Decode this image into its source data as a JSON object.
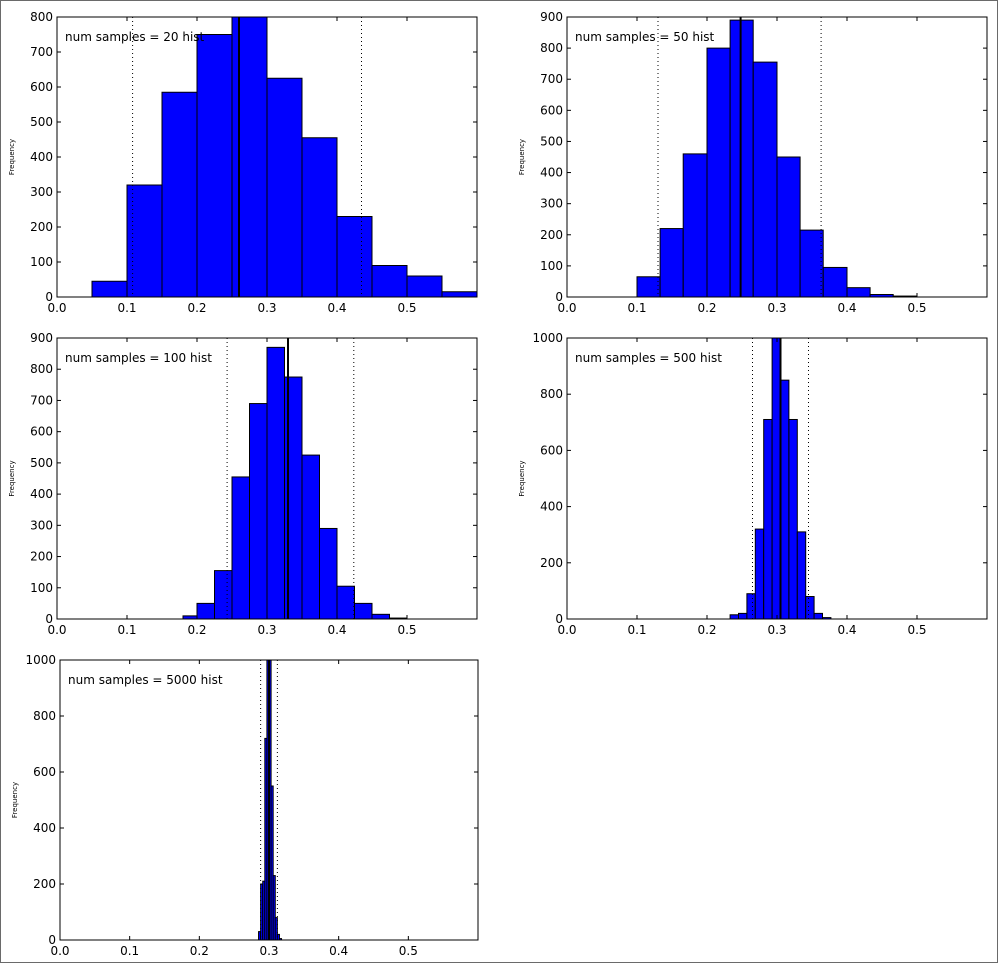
{
  "chart_data": [
    {
      "type": "bar",
      "annotation": "num samples = 20 hist",
      "ylabel": "Frequency",
      "xlim": [
        0.0,
        0.6
      ],
      "ylim": [
        0,
        800
      ],
      "xticks": [
        0.0,
        0.1,
        0.2,
        0.3,
        0.4,
        0.5
      ],
      "yticks": [
        0,
        100,
        200,
        300,
        400,
        500,
        600,
        700,
        800
      ],
      "bin_edges": [
        0.05,
        0.1,
        0.15,
        0.2,
        0.25,
        0.3,
        0.35,
        0.4,
        0.45,
        0.5,
        0.55,
        0.6
      ],
      "counts": [
        45,
        320,
        585,
        750,
        800,
        625,
        455,
        230,
        90,
        60,
        15
      ],
      "mean_line": 0.26,
      "ci_lines": [
        0.108,
        0.435
      ],
      "bar_color": "#0000ff"
    },
    {
      "type": "bar",
      "annotation": "num samples = 50 hist",
      "ylabel": "Frequency",
      "xlim": [
        0.0,
        0.6
      ],
      "ylim": [
        0,
        900
      ],
      "xticks": [
        0.0,
        0.1,
        0.2,
        0.3,
        0.4,
        0.5
      ],
      "yticks": [
        0,
        100,
        200,
        300,
        400,
        500,
        600,
        700,
        800,
        900
      ],
      "bin_edges": [
        0.1,
        0.133,
        0.166,
        0.2,
        0.233,
        0.266,
        0.3,
        0.333,
        0.366,
        0.4,
        0.433,
        0.466,
        0.5
      ],
      "counts": [
        65,
        220,
        460,
        800,
        890,
        755,
        450,
        215,
        95,
        30,
        8,
        3
      ],
      "mean_line": 0.248,
      "ci_lines": [
        0.13,
        0.363
      ],
      "bar_color": "#0000ff"
    },
    {
      "type": "bar",
      "annotation": "num samples = 100 hist",
      "ylabel": "Frequency",
      "xlim": [
        0.0,
        0.6
      ],
      "ylim": [
        0,
        900
      ],
      "xticks": [
        0.0,
        0.1,
        0.2,
        0.3,
        0.4,
        0.5
      ],
      "yticks": [
        0,
        100,
        200,
        300,
        400,
        500,
        600,
        700,
        800,
        900
      ],
      "bin_edges": [
        0.18,
        0.2,
        0.225,
        0.25,
        0.275,
        0.3,
        0.325,
        0.35,
        0.375,
        0.4,
        0.425,
        0.45,
        0.475,
        0.5
      ],
      "counts": [
        10,
        50,
        155,
        455,
        690,
        870,
        775,
        525,
        290,
        105,
        50,
        15,
        3
      ],
      "mean_line": 0.33,
      "ci_lines": [
        0.243,
        0.424
      ],
      "bar_color": "#0000ff"
    },
    {
      "type": "bar",
      "annotation": "num samples = 500 hist",
      "ylabel": "Frequency",
      "xlim": [
        0.0,
        0.6
      ],
      "ylim": [
        0,
        1000
      ],
      "xticks": [
        0.0,
        0.1,
        0.2,
        0.3,
        0.4,
        0.5
      ],
      "yticks": [
        0,
        200,
        400,
        600,
        800,
        1000
      ],
      "bin_edges": [
        0.233,
        0.245,
        0.257,
        0.269,
        0.281,
        0.293,
        0.305,
        0.317,
        0.329,
        0.341,
        0.353,
        0.365,
        0.377
      ],
      "counts": [
        15,
        20,
        90,
        320,
        710,
        1000,
        850,
        710,
        310,
        80,
        20,
        5
      ],
      "mean_line": 0.305,
      "ci_lines": [
        0.265,
        0.345
      ],
      "bar_color": "#0000ff"
    },
    {
      "type": "bar",
      "annotation": "num samples = 5000 hist",
      "ylabel": "Frequency",
      "xlim": [
        0.0,
        0.6
      ],
      "ylim": [
        0,
        1000
      ],
      "xticks": [
        0.0,
        0.1,
        0.2,
        0.3,
        0.4,
        0.5
      ],
      "yticks": [
        0,
        200,
        400,
        600,
        800,
        1000
      ],
      "bin_edges": [
        0.285,
        0.288,
        0.291,
        0.294,
        0.297,
        0.3,
        0.303,
        0.306,
        0.309,
        0.312,
        0.315,
        0.318
      ],
      "counts": [
        30,
        200,
        210,
        720,
        1000,
        1000,
        550,
        230,
        80,
        20,
        5
      ],
      "mean_line": 0.3,
      "ci_lines": [
        0.288,
        0.312
      ],
      "bar_color": "#0000ff"
    }
  ]
}
